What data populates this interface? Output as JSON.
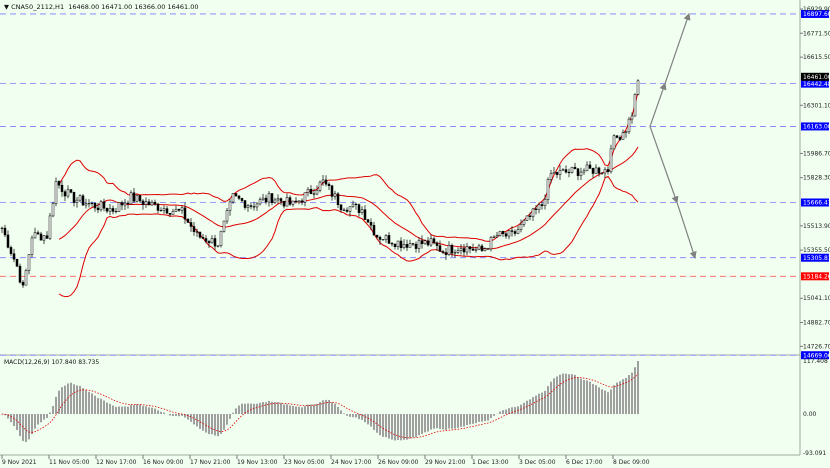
{
  "header": {
    "symbol": "CNA50_2112,H1",
    "ohlc": "16468.00 16471.00 16366.00 16461.00"
  },
  "macd_title": "MACD(12,26,9) 107.840 83.735",
  "colors": {
    "background": "#f0fff0",
    "bands": "#e00000",
    "levels": "#7b7bff",
    "resistance_red": "#ff6060",
    "label_blue": "#0000ff",
    "label_red": "#ff0000",
    "arrows": "#808080",
    "histogram": "#a0a0a0"
  },
  "chart_data": {
    "type": "candlestick",
    "price_axis_ticks": [
      "16929.90",
      "16771.50",
      "16615.50",
      "16301.10",
      "15986.70",
      "15828.30",
      "15513.90",
      "15355.50",
      "15041.10",
      "14882.70",
      "14726.70"
    ],
    "price_tick_values": [
      16929.9,
      16771.5,
      16615.5,
      16301.1,
      15986.7,
      15828.3,
      15513.9,
      15355.5,
      15041.1,
      14882.7,
      14726.7
    ],
    "time_labels": [
      "9 Nov 2021",
      "11 Nov 05:00",
      "12 Nov 17:00",
      "16 Nov 09:00",
      "17 Nov 21:00",
      "19 Nov 13:00",
      "23 Nov 05:00",
      "24 Nov 17:00",
      "26 Nov 09:00",
      "29 Nov 21:00",
      "1 Dec 13:00",
      "3 Dec 05:00",
      "6 Dec 17:00",
      "8 Dec 09:00"
    ],
    "close_path": [
      [
        0,
        15500
      ],
      [
        5,
        15250
      ],
      [
        7,
        15100
      ],
      [
        10,
        15450
      ],
      [
        15,
        15450
      ],
      [
        18,
        15800
      ],
      [
        23,
        15700
      ],
      [
        30,
        15650
      ],
      [
        37,
        15620
      ],
      [
        43,
        15700
      ],
      [
        50,
        15650
      ],
      [
        60,
        15600
      ],
      [
        65,
        15450
      ],
      [
        72,
        15400
      ],
      [
        77,
        15700
      ],
      [
        83,
        15650
      ],
      [
        90,
        15700
      ],
      [
        97,
        15650
      ],
      [
        107,
        15800
      ],
      [
        113,
        15650
      ],
      [
        120,
        15620
      ],
      [
        125,
        15450
      ],
      [
        133,
        15400
      ],
      [
        143,
        15400
      ],
      [
        147,
        15350
      ],
      [
        153,
        15380
      ],
      [
        160,
        15350
      ],
      [
        165,
        15450
      ],
      [
        170,
        15450
      ],
      [
        175,
        15550
      ],
      [
        180,
        15650
      ],
      [
        183,
        15850
      ],
      [
        190,
        15870
      ],
      [
        197,
        15880
      ],
      [
        202,
        15880
      ],
      [
        203,
        16050
      ],
      [
        208,
        16150
      ],
      [
        210,
        16250
      ],
      [
        212,
        16461
      ]
    ],
    "last_ohlc": {
      "open": 16468.0,
      "high": 16471.0,
      "low": 16366.0,
      "close": 16461.0
    },
    "levels": [
      {
        "price": 16897.6,
        "label": "16897.60",
        "style": "blue"
      },
      {
        "price": 16442.48,
        "label": "16442.48",
        "style": "blue"
      },
      {
        "price": 16163.0,
        "label": "16163.00",
        "style": "blue"
      },
      {
        "price": 15666.41,
        "label": "15666.41",
        "style": "blue"
      },
      {
        "price": 15305.81,
        "label": "15305.81",
        "style": "blue"
      },
      {
        "price": 15184.26,
        "label": "15184.26",
        "style": "red"
      },
      {
        "price": 14669.06,
        "label": "14669.06",
        "style": "blue"
      }
    ],
    "current_price_label": "16461.00",
    "indicators": {
      "bollinger": {
        "period": 20,
        "deviation": 2
      },
      "macd": {
        "fast": 12,
        "slow": 26,
        "signal": 9
      }
    },
    "projections": [
      [
        [
          216,
          16163
        ],
        [
          221,
          16442.48
        ],
        [
          229,
          16897.6
        ]
      ],
      [
        [
          216,
          16163
        ],
        [
          225,
          15666.41
        ],
        [
          231,
          15305.81
        ]
      ]
    ],
    "macd_axis": {
      "ticks": [
        "117.408",
        "0.00",
        "-93.091"
      ],
      "values": [
        117.408,
        0,
        -93.091
      ]
    }
  }
}
